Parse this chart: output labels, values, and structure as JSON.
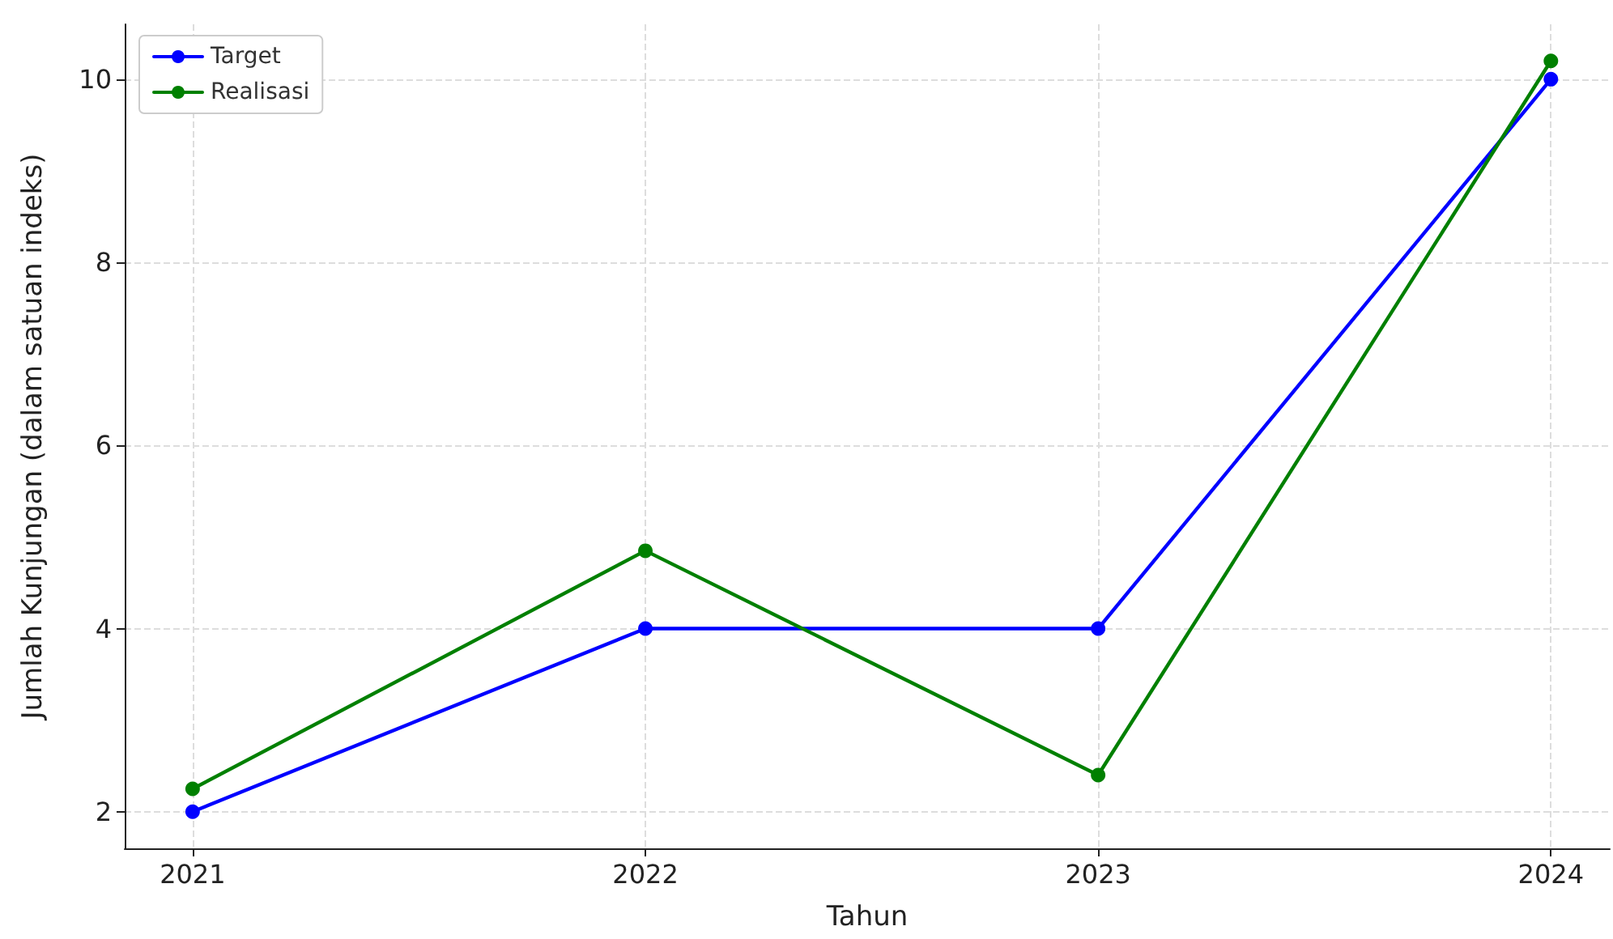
{
  "chart_data": {
    "type": "line",
    "xlabel": "Tahun",
    "ylabel": "Jumlah Kunjungan (dalam satuan indeks)",
    "x": [
      2021,
      2022,
      2023,
      2024
    ],
    "series": [
      {
        "name": "Target",
        "color": "#0000ff",
        "values": [
          2,
          4,
          4,
          10
        ]
      },
      {
        "name": "Realisasi",
        "color": "#008000",
        "values": [
          2.25,
          4.85,
          2.4,
          10.2
        ]
      }
    ],
    "xlim": [
      2020.85,
      2024.13
    ],
    "xticks": [
      2021,
      2022,
      2023,
      2024
    ],
    "ylim": [
      1.6,
      10.6
    ],
    "yticks": [
      2,
      4,
      6,
      8,
      10
    ],
    "grid": true,
    "legend": "top left",
    "marker": "circle",
    "line_style": "solid"
  }
}
